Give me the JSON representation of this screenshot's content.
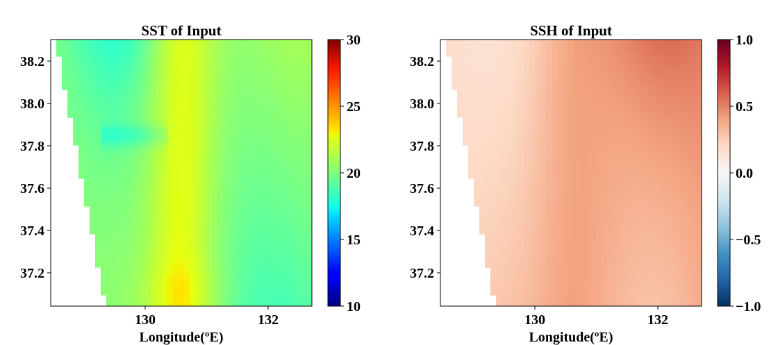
{
  "chart_data": [
    {
      "type": "heatmap",
      "title": "SST of Input",
      "xlabel": "Longitude(ºE)",
      "ylabel": "",
      "xlim": [
        128.48,
        132.72
      ],
      "ylim": [
        37.04,
        38.3
      ],
      "x_ticks": [
        130,
        132
      ],
      "x_tick_labels": [
        "130",
        "132"
      ],
      "y_ticks": [
        37.2,
        37.4,
        37.6,
        37.8,
        38.0,
        38.2
      ],
      "y_tick_labels": [
        "37.2",
        "37.4",
        "37.6",
        "37.8",
        "38.0",
        "38.2"
      ],
      "colormap": "jet",
      "colorbar": {
        "min": 10,
        "max": 30,
        "ticks": [
          10,
          15,
          20,
          25,
          30
        ],
        "tick_labels": [
          "10",
          "15",
          "20",
          "25",
          "30"
        ]
      },
      "description_of_field": "Values mostly 18-23: warm band ~22-23 near 130.5E, cooler ~17.5-18.5 in the north-west and south-east, land (no data) in the west"
    },
    {
      "type": "heatmap",
      "title": "SSH of Input",
      "xlabel": "Longitude(ºE)",
      "ylabel": "",
      "xlim": [
        128.48,
        132.72
      ],
      "ylim": [
        37.04,
        38.3
      ],
      "x_ticks": [
        130,
        132
      ],
      "x_tick_labels": [
        "130",
        "132"
      ],
      "y_ticks": [
        37.2,
        37.4,
        37.6,
        37.8,
        38.0,
        38.2
      ],
      "y_tick_labels": [
        "37.2",
        "37.4",
        "37.6",
        "37.8",
        "38.0",
        "38.2"
      ],
      "colormap": "RdBu_r",
      "colorbar": {
        "min": -1.0,
        "max": 1.0,
        "ticks": [
          -1.0,
          -0.5,
          0.0,
          0.5,
          1.0
        ],
        "tick_labels": [
          "−1.0",
          "−0.5",
          "0.0",
          "0.5",
          "1.0"
        ]
      },
      "description_of_field": "Values mostly 0.12-0.55: higher (~0.45-0.55) east of 130.5E in the north, lower (~0.15) in the north-west"
    }
  ]
}
